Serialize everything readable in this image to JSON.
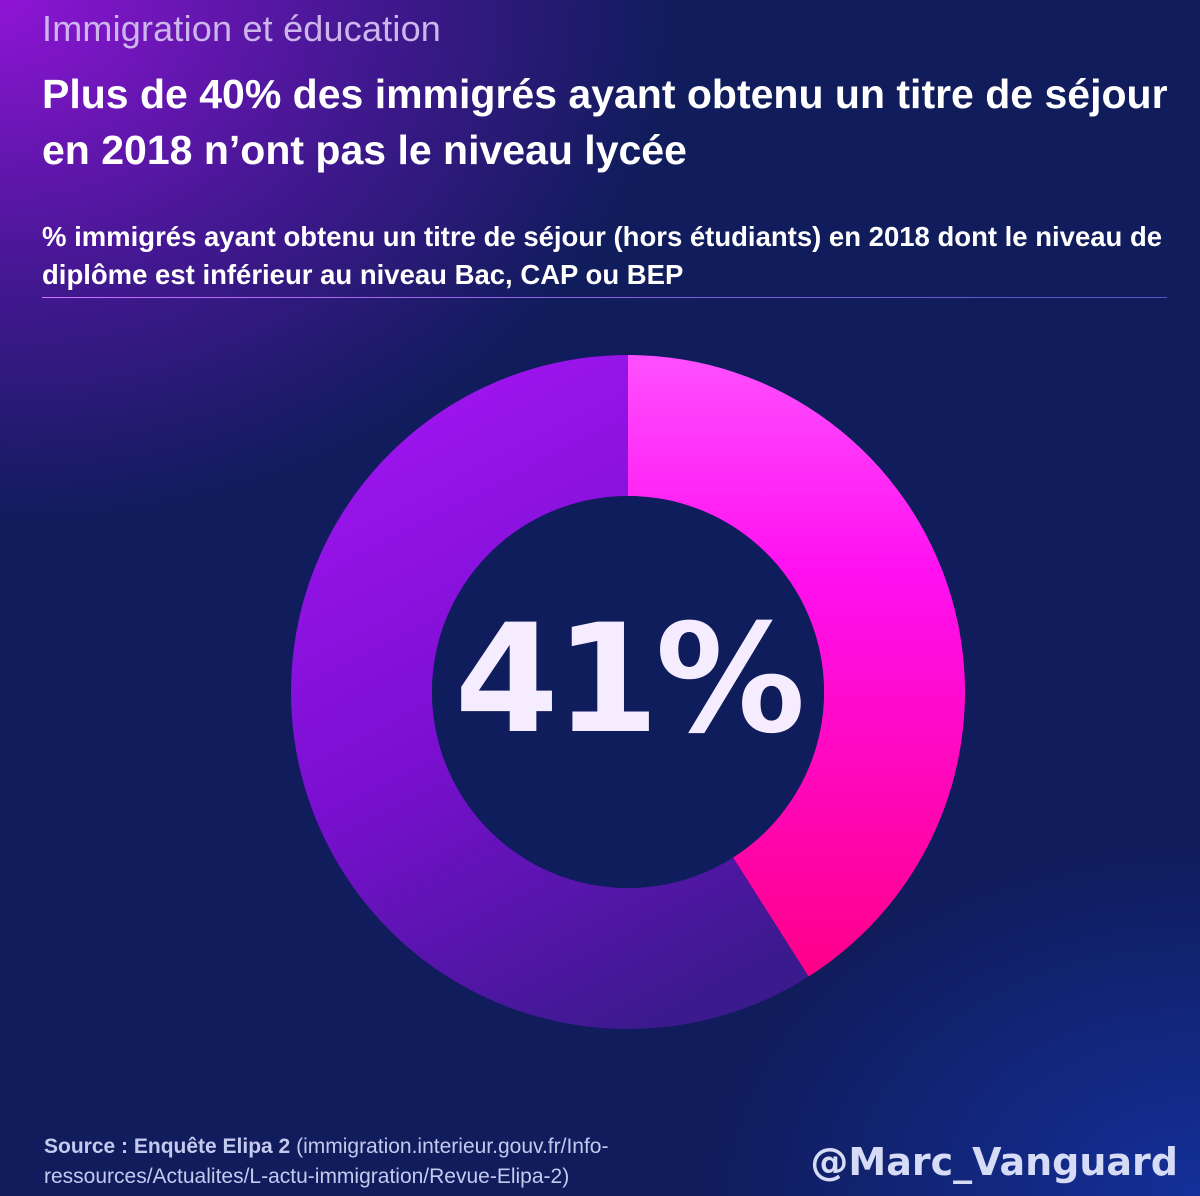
{
  "header": {
    "kicker": "Immigration et éducation",
    "title": "Plus de 40% des immigrés ayant obtenu un titre de séjour en 2018 n’ont pas le niveau lycée",
    "subtitle": "% immigrés ayant obtenu un titre de séjour (hors étudiants) en 2018 dont le niveau de diplôme est inférieur au niveau Bac, CAP ou BEP"
  },
  "chart_data": {
    "type": "pie",
    "style": "donut",
    "values": [
      41,
      59
    ],
    "center_label": "41%",
    "colors": {
      "highlight_start": "#ff40ff",
      "highlight_end": "#ff0090",
      "rest_start": "#9a10e8",
      "rest_end": "#3a1a8a",
      "hole": "#0f1d5c"
    }
  },
  "footer": {
    "source_label": "Source : Enquête Elipa 2",
    "source_detail": "(immigration.interieur.gouv.fr/Info-ressources/Actualites/L-actu-immigration/Revue-Elipa-2)",
    "handle": "@Marc_Vanguard"
  }
}
